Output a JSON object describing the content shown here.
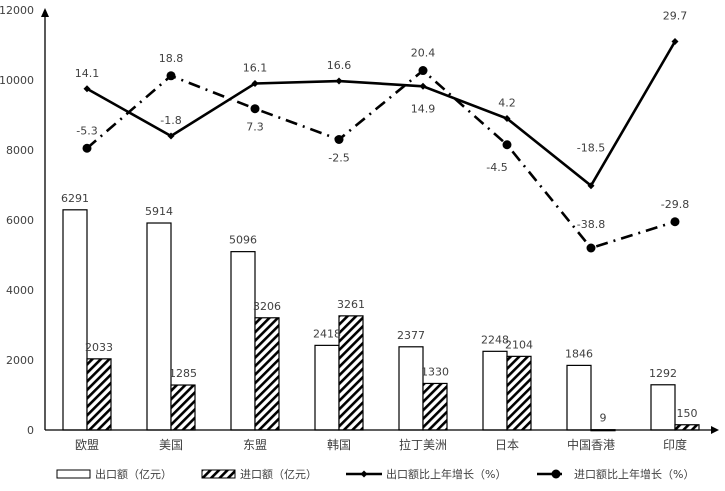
{
  "chart_data": {
    "type": "bar",
    "title": "",
    "xlabel": "",
    "ylabel": "",
    "ylim": [
      0,
      12000
    ],
    "yticks": [
      0,
      2000,
      4000,
      6000,
      8000,
      10000,
      12000
    ],
    "grid": false,
    "legend_position": "bottom",
    "categories": [
      "欧盟",
      "美国",
      "东盟",
      "韩国",
      "拉丁美洲",
      "日本",
      "中国香港",
      "印度"
    ],
    "series": [
      {
        "name": "出口额（亿元）",
        "type": "bar",
        "pattern": "solid-white",
        "values": [
          6291,
          5914,
          5096,
          2418,
          2377,
          2248,
          1846,
          1292
        ]
      },
      {
        "name": "进口额（亿元）",
        "type": "bar",
        "pattern": "hatched",
        "values": [
          2033,
          1285,
          3206,
          3261,
          1330,
          2104,
          9,
          150
        ]
      },
      {
        "name": "出口额比上年增长（%）",
        "type": "line",
        "style": "solid-diamond",
        "values": [
          14.1,
          -1.8,
          16.1,
          16.6,
          14.9,
          4.2,
          -18.5,
          29.7
        ],
        "plot_y": [
          9750,
          8400,
          9900,
          9970,
          9820,
          8900,
          6980,
          11100
        ]
      },
      {
        "name": "进口额比上年增长（%）",
        "type": "line",
        "style": "dashdot-circle",
        "values": [
          -5.3,
          18.8,
          7.3,
          -2.5,
          20.4,
          -4.5,
          -38.8,
          -29.8
        ],
        "plot_y": [
          8050,
          10120,
          9180,
          8300,
          10270,
          8150,
          5200,
          5950
        ]
      }
    ]
  }
}
